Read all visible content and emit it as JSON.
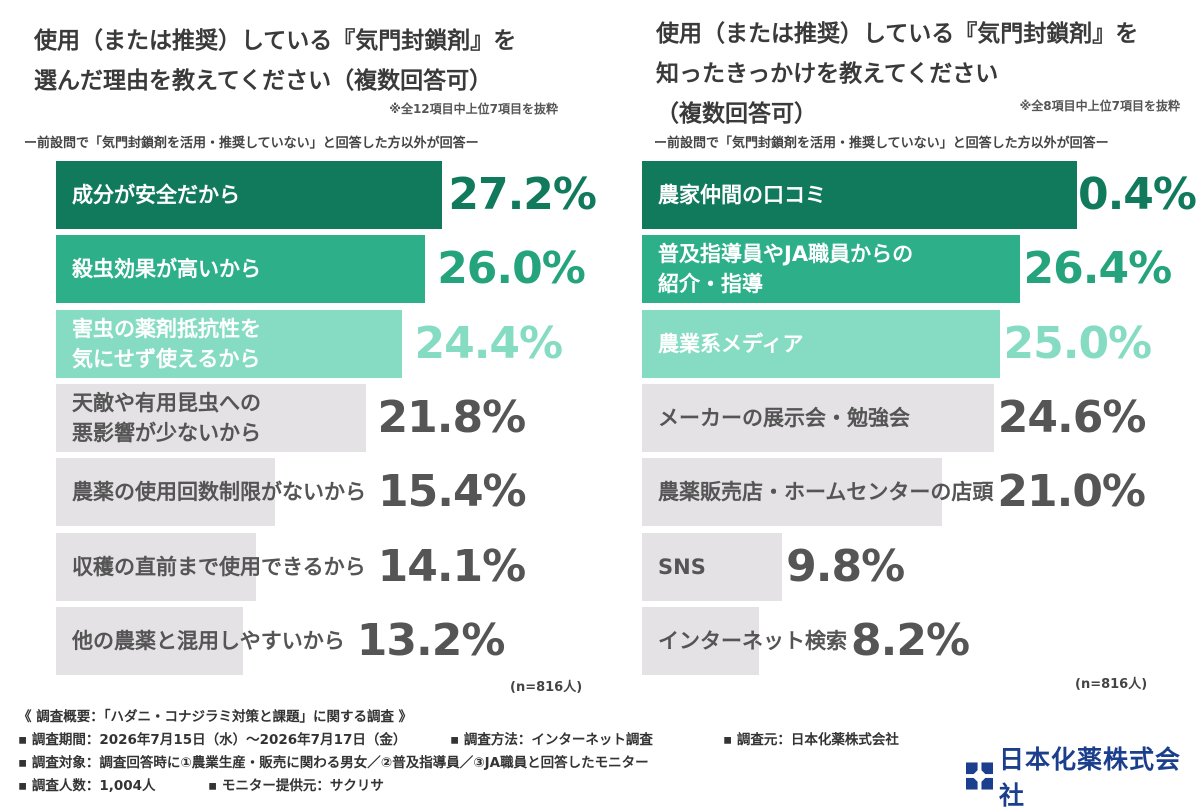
{
  "left": {
    "title": "使用（または推奨）している『気門封鎖剤』を\n選んだ理由を教えてください（複数回答可）",
    "note": "※全12項目中上位7項目を抜粋",
    "subnote": "ー前設問で「気門封鎖剤を活用・推奨していない」と回答した方以外が回答ー",
    "n": "(n=816人)"
  },
  "right": {
    "title": "使用（または推奨）している『気門封鎖剤』を\n知ったきっかけを教えてください\n（複数回答可）",
    "note": "※全8項目中上位7項目を抜粋",
    "subnote": "ー前設問で「気門封鎖剤を活用・推奨していない」と回答した方以外が回答ー",
    "n": "(n=816人)"
  },
  "chart_data": [
    {
      "type": "bar",
      "title": "使用（または推奨）している『気門封鎖剤』を選んだ理由を教えてください（複数回答可）",
      "categories": [
        "成分が安全だから",
        "殺虫効果が高いから",
        "害虫の薬剤抵抗性を\n気にせず使えるから",
        "天敵や有用昆虫への\n悪影響が少ないから",
        "農薬の使用回数制限がないから",
        "収穫の直前まで使用できるから",
        "他の農薬と混用しやすいから"
      ],
      "values": [
        27.2,
        26.0,
        24.4,
        21.8,
        15.4,
        14.1,
        13.2
      ],
      "value_labels": [
        "27.2%",
        "26.0%",
        "24.4%",
        "21.8%",
        "15.4%",
        "14.1%",
        "13.2%"
      ],
      "unit": "%",
      "orientation": "horizontal",
      "n": "n=816人"
    },
    {
      "type": "bar",
      "title": "使用（または推奨）している『気門封鎖剤』を知ったきっかけを教えてください（複数回答可）",
      "categories": [
        "農家仲間の口コミ",
        "普及指導員やJA職員からの\n紹介・指導",
        "農業系メディア",
        "メーカーの展示会・勉強会",
        "農薬販売店・ホームセンターの店頭",
        "SNS",
        "インターネット検索"
      ],
      "values": [
        30.4,
        26.4,
        25.0,
        24.6,
        21.0,
        9.8,
        8.2
      ],
      "value_labels": [
        "30.4%",
        "26.4%",
        "25.0%",
        "24.6%",
        "21.0%",
        "9.8%",
        "8.2%"
      ],
      "unit": "%",
      "orientation": "horizontal",
      "n": "n=816人"
    }
  ],
  "colors": {
    "rank1": "#127a5c",
    "rank2": "#2db08a",
    "rank3": "#86dcc2",
    "rest": "#e4e2e4",
    "label_dark": "#ffffff",
    "label_rest": "#555555",
    "value1": "#127a5c",
    "value2": "#25a37c",
    "value3": "#86dcc2",
    "value_rest": "#555555",
    "logo": "#1b3f8c"
  },
  "footer": {
    "line1": "《 調査概要：「ハダニ・コナジラミ対策と課題」に関する調査 》",
    "period": "▪ 調査期間：2026年7月15日（水）〜2026年7月17日（金）",
    "method": "▪ 調査方法：インターネット調査",
    "source": "▪ 調査元：日本化薬株式会社",
    "target": "▪ 調査対象：調査回答時に①農業生産・販売に関わる男女／②普及指導員／③JA職員と回答したモニター",
    "count": "▪ 調査人数：1,004人",
    "provider": "▪ モニター提供元：サクリサ"
  },
  "logo": {
    "text": "日本化薬株式会社",
    "icon": "nippon-kayaku-logo-mark"
  }
}
